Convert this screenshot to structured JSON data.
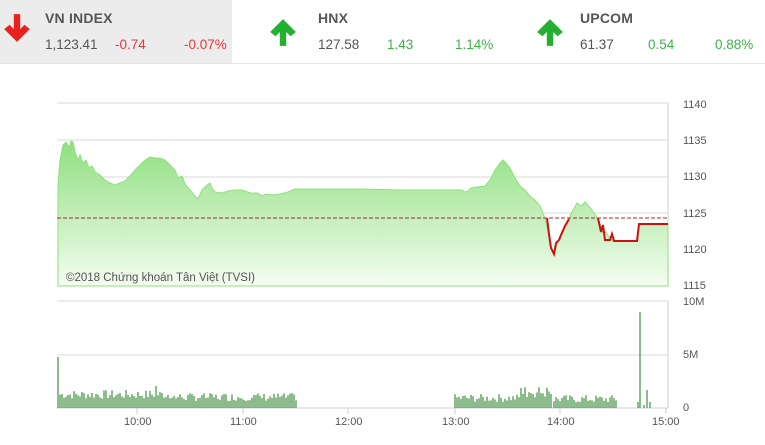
{
  "tickers": [
    {
      "name": "VN INDEX",
      "value": "1,123.41",
      "change": "-0.74",
      "percent": "-0.07%",
      "direction": "down",
      "color": "#e23b3b",
      "icon": "arrow-down-icon"
    },
    {
      "name": "HNX",
      "value": "127.58",
      "change": "1.43",
      "percent": "1.14%",
      "direction": "up",
      "color": "#3fb24a",
      "icon": "arrow-up-icon"
    },
    {
      "name": "UPCOM",
      "value": "61.37",
      "change": "0.54",
      "percent": "0.88%",
      "direction": "up",
      "color": "#3fb24a",
      "icon": "arrow-up-icon"
    }
  ],
  "copyright": "©2018 Chứng khoán Tân Việt (TVSI)",
  "price_axis": [
    "1140",
    "1135",
    "1130",
    "1125",
    "1120",
    "1115"
  ],
  "volume_axis": [
    "10M",
    "5M",
    "0"
  ],
  "time_axis": [
    "10:00",
    "11:00",
    "12:00",
    "13:00",
    "14:00",
    "15:00"
  ],
  "colors": {
    "area": "#8fe07f",
    "below_line": "#cc1111",
    "reference": "#a52a2a",
    "volume": "#1a7a1a",
    "grid": "#d8d8d8"
  },
  "chart_data": [
    {
      "type": "area",
      "title": "VN INDEX intraday",
      "xlabel": "",
      "ylabel": "",
      "ylim": [
        1115,
        1140
      ],
      "reference_line": 1124.15,
      "grid": true,
      "x": [
        "09:15",
        "09:20",
        "09:30",
        "09:40",
        "09:50",
        "10:00",
        "10:10",
        "10:20",
        "10:30",
        "10:40",
        "10:50",
        "11:00",
        "11:10",
        "11:20",
        "11:30",
        "13:00",
        "13:10",
        "13:20",
        "13:30",
        "13:40",
        "13:50",
        "13:55",
        "14:00",
        "14:05",
        "14:10",
        "14:15",
        "14:20",
        "14:25",
        "14:30",
        "14:35",
        "14:40",
        "14:45",
        "14:50",
        "14:55",
        "15:00"
      ],
      "values": [
        1130,
        1135,
        1133.5,
        1131.5,
        1130.5,
        1131,
        1132.5,
        1132.5,
        1131,
        1128.3,
        1128,
        1127.8,
        1127.8,
        1128.3,
        1128.3,
        1128.2,
        1129,
        1132,
        1130.5,
        1128,
        1125,
        1120,
        1119.5,
        1122.5,
        1124.5,
        1125.5,
        1124.5,
        1122.5,
        1121.3,
        1121,
        1121,
        1121,
        1123.5,
        1123.4,
        1123.41
      ]
    },
    {
      "type": "bar",
      "title": "Volume",
      "ylim": [
        0,
        10000000
      ],
      "ylabel": "",
      "note": "Opening bar ~5M at 09:15, closing ATC bar ~9M at 14:45; typical bars 0.5M-1.5M"
    }
  ]
}
